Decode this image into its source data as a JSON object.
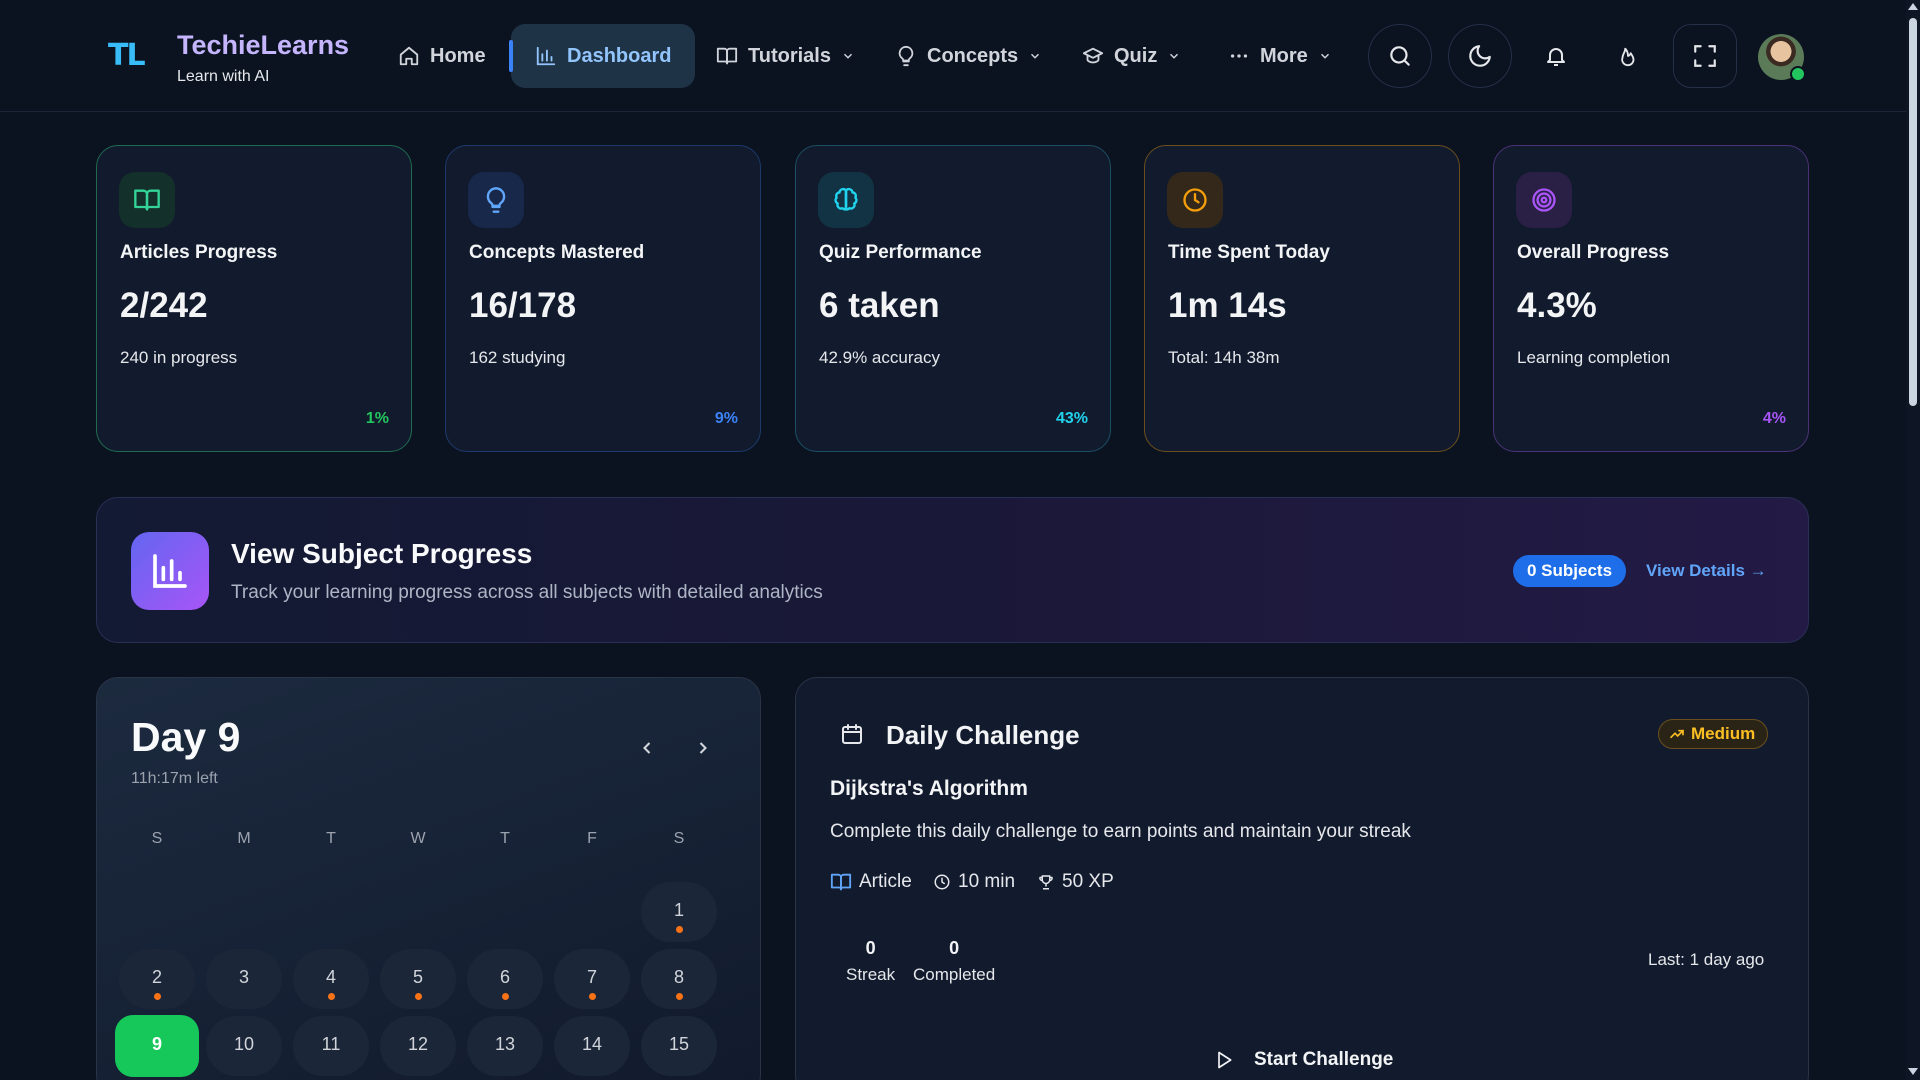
{
  "brand": {
    "mark": "TL",
    "name": "TechieLearns",
    "tagline": "Learn with AI"
  },
  "nav": {
    "home": "Home",
    "dashboard": "Dashboard",
    "tutorials": "Tutorials",
    "concepts": "Concepts",
    "quiz": "Quiz",
    "more": "More",
    "active": "dashboard"
  },
  "header_actions": [
    "search-icon",
    "moon-icon",
    "bell-icon",
    "flame-icon",
    "fullscreen-icon",
    "avatar"
  ],
  "stats": [
    {
      "icon": "book-icon",
      "label": "Articles Progress",
      "value": "2/242",
      "sub": "240 in progress",
      "pct": "1%",
      "accent": "#22c55e"
    },
    {
      "icon": "lightbulb-icon",
      "label": "Concepts Mastered",
      "value": "16/178",
      "sub": "162 studying",
      "pct": "9%",
      "accent": "#3b82f6"
    },
    {
      "icon": "brain-icon",
      "label": "Quiz Performance",
      "value": "6 taken",
      "sub": "42.9% accuracy",
      "pct": "43%",
      "accent": "#22d3ee"
    },
    {
      "icon": "clock-icon",
      "label": "Time Spent Today",
      "value": "1m 14s",
      "sub": "Total: 14h 38m",
      "pct": "",
      "accent": "#f59e0b"
    },
    {
      "icon": "target-icon",
      "label": "Overall Progress",
      "value": "4.3%",
      "sub": "Learning completion",
      "pct": "4%",
      "accent": "#a855f7"
    }
  ],
  "banner": {
    "title": "View Subject Progress",
    "subtitle": "Track your learning progress across all subjects with detailed analytics",
    "badge": "0 Subjects",
    "link": "View Details →"
  },
  "calendar": {
    "title": "Day 9",
    "time_left": "11h:17m left",
    "weekdays": [
      "S",
      "M",
      "T",
      "W",
      "T",
      "F",
      "S"
    ],
    "days": [
      {
        "n": "1",
        "col": 6,
        "row": 0,
        "filled": true,
        "dot": true
      },
      {
        "n": "2",
        "col": 0,
        "row": 1,
        "filled": true,
        "dot": true
      },
      {
        "n": "3",
        "col": 1,
        "row": 1,
        "filled": true,
        "dot": false
      },
      {
        "n": "4",
        "col": 2,
        "row": 1,
        "filled": true,
        "dot": true
      },
      {
        "n": "5",
        "col": 3,
        "row": 1,
        "filled": true,
        "dot": true
      },
      {
        "n": "6",
        "col": 4,
        "row": 1,
        "filled": true,
        "dot": true
      },
      {
        "n": "7",
        "col": 5,
        "row": 1,
        "filled": true,
        "dot": true
      },
      {
        "n": "8",
        "col": 6,
        "row": 1,
        "filled": true,
        "dot": true
      },
      {
        "n": "9",
        "col": 0,
        "row": 2,
        "today": true
      },
      {
        "n": "10",
        "col": 1,
        "row": 2,
        "filled": true
      },
      {
        "n": "11",
        "col": 2,
        "row": 2,
        "filled": true
      },
      {
        "n": "12",
        "col": 3,
        "row": 2,
        "filled": true
      },
      {
        "n": "13",
        "col": 4,
        "row": 2,
        "filled": true
      },
      {
        "n": "14",
        "col": 5,
        "row": 2,
        "filled": true
      },
      {
        "n": "15",
        "col": 6,
        "row": 2,
        "filled": true
      }
    ]
  },
  "challenge": {
    "title": "Daily Challenge",
    "difficulty": "Medium",
    "topic": "Dijkstra's Algorithm",
    "description": "Complete this daily challenge to earn points and maintain your streak",
    "type": "Article",
    "duration": "10 min",
    "xp": "50 XP",
    "streak_value": "0",
    "streak_label": "Streak",
    "completed_value": "0",
    "completed_label": "Completed",
    "last": "Last: 1 day ago",
    "start": "Start Challenge"
  }
}
